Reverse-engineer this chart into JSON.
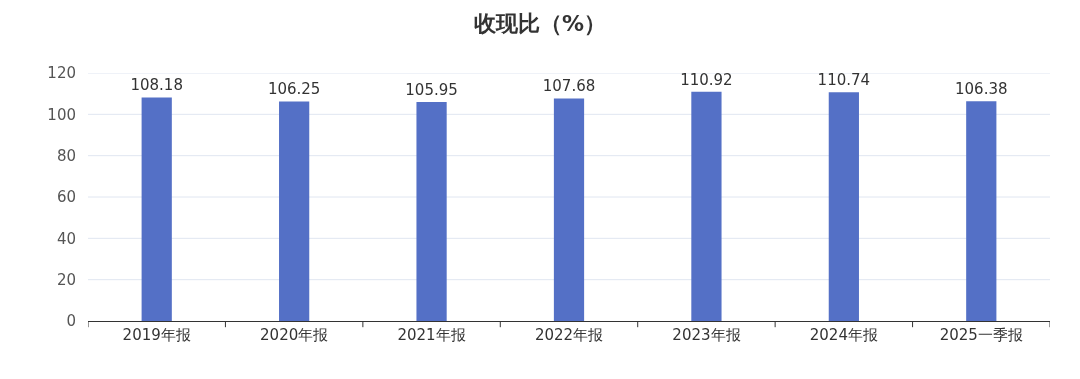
{
  "chart_data": {
    "type": "bar",
    "title": "收现比（%）",
    "categories": [
      "2019年报",
      "2020年报",
      "2021年报",
      "2022年报",
      "2023年报",
      "2024年报",
      "2025一季报"
    ],
    "values": [
      108.18,
      106.25,
      105.95,
      107.68,
      110.92,
      110.74,
      106.38
    ],
    "color": "#5470c6",
    "ylim": [
      0,
      120
    ],
    "yticks": [
      0,
      20,
      40,
      60,
      80,
      100,
      120
    ],
    "grid": "y",
    "data_labels": true
  }
}
